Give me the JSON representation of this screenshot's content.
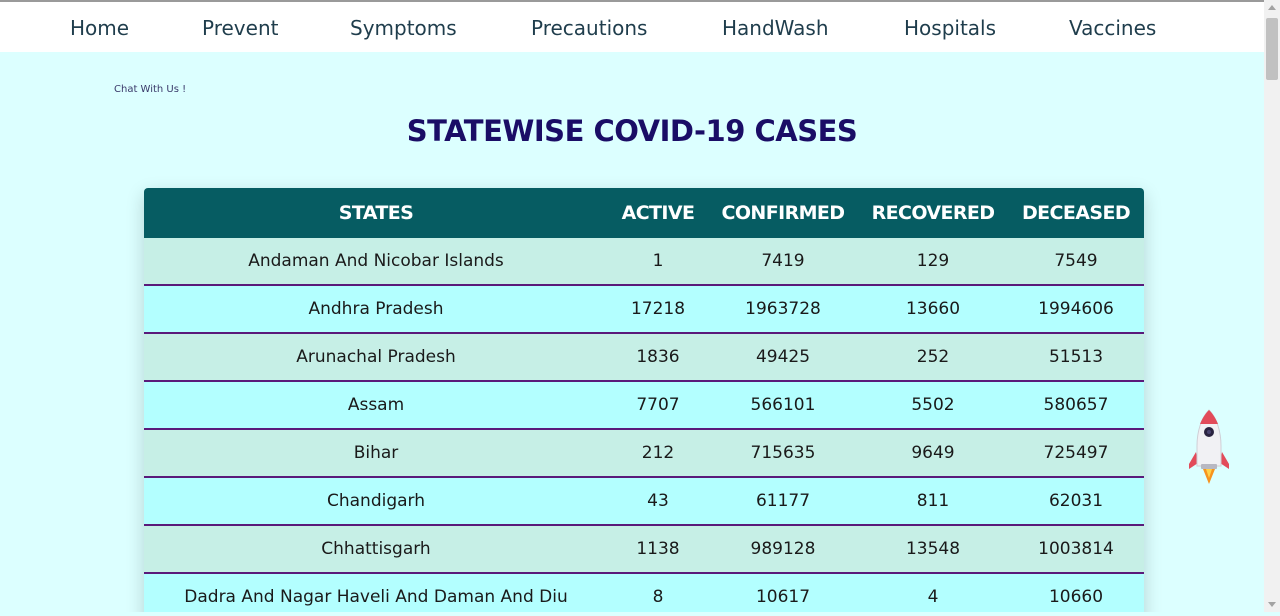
{
  "nav": {
    "items": [
      {
        "label": "Home"
      },
      {
        "label": "Prevent"
      },
      {
        "label": "Symptoms"
      },
      {
        "label": "Precautions"
      },
      {
        "label": "HandWash"
      },
      {
        "label": "Hospitals"
      },
      {
        "label": "Vaccines"
      }
    ]
  },
  "chat_label": "Chat With Us !",
  "title": "STATEWISE COVID-19 CASES",
  "table": {
    "headers": [
      "STATES",
      "ACTIVE",
      "CONFIRMED",
      "RECOVERED",
      "DECEASED"
    ],
    "rows": [
      [
        "Andaman And Nicobar Islands",
        "1",
        "7419",
        "129",
        "7549"
      ],
      [
        "Andhra Pradesh",
        "17218",
        "1963728",
        "13660",
        "1994606"
      ],
      [
        "Arunachal Pradesh",
        "1836",
        "49425",
        "252",
        "51513"
      ],
      [
        "Assam",
        "7707",
        "566101",
        "5502",
        "580657"
      ],
      [
        "Bihar",
        "212",
        "715635",
        "9649",
        "725497"
      ],
      [
        "Chandigarh",
        "43",
        "61177",
        "811",
        "62031"
      ],
      [
        "Chhattisgarh",
        "1138",
        "989128",
        "13548",
        "1003814"
      ],
      [
        "Dadra And Nagar Haveli And Daman And Diu",
        "8",
        "10617",
        "4",
        "10660"
      ]
    ]
  },
  "colors": {
    "header_bg": "#065c62",
    "row_odd": "#c6efe6",
    "row_even": "#b3ffff",
    "row_border": "#5a1a7a",
    "title": "#1a0d66",
    "page_bg": "#dcffff"
  },
  "icons": {
    "rocket": "rocket-icon"
  }
}
